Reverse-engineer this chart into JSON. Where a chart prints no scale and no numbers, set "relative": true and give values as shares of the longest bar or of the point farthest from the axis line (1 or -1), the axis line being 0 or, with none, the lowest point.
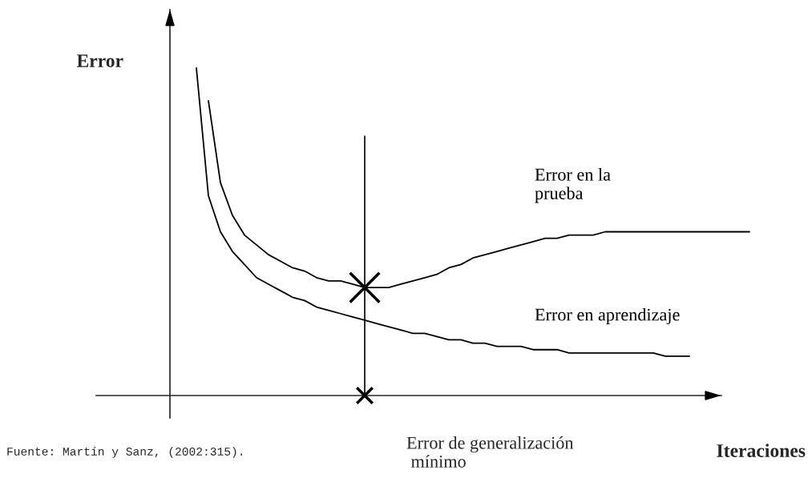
{
  "chart_data": {
    "type": "line",
    "relative": true,
    "xlabel": "Iteraciones",
    "ylabel": "Error",
    "categories": [
      null,
      null,
      null,
      null,
      null,
      null,
      null,
      null,
      null,
      null,
      null,
      null,
      null,
      null,
      null,
      null,
      null,
      null,
      null,
      null,
      null,
      null,
      null,
      null,
      null,
      null,
      null,
      null,
      null,
      null,
      null,
      null,
      null,
      null,
      null,
      null,
      null,
      null,
      null,
      null,
      null,
      null,
      null,
      null,
      null,
      null,
      null
    ],
    "series": [
      {
        "name": "Error en la\nprueba",
        "color": "#000000",
        "values": [
          null,
          0.9,
          0.65,
          0.55,
          0.49,
          0.46,
          0.43,
          0.41,
          0.39,
          0.38,
          0.36,
          0.35,
          0.35,
          0.34,
          0.33,
          0.33,
          0.33,
          0.34,
          0.35,
          0.36,
          0.37,
          0.39,
          0.4,
          0.42,
          0.43,
          0.44,
          0.45,
          0.46,
          0.47,
          0.48,
          0.48,
          0.49,
          0.49,
          0.49,
          0.5,
          0.5,
          0.5,
          0.5,
          0.5,
          0.5,
          0.5,
          0.5,
          0.5,
          0.5,
          0.5,
          0.5,
          0.5
        ]
      },
      {
        "name": "Error en aprendizaje",
        "color": "#000000",
        "values": [
          1.0,
          0.61,
          0.5,
          0.44,
          0.4,
          0.36,
          0.34,
          0.32,
          0.3,
          0.29,
          0.27,
          0.26,
          0.25,
          0.24,
          0.23,
          0.22,
          0.21,
          0.2,
          0.19,
          0.19,
          0.18,
          0.17,
          0.17,
          0.16,
          0.16,
          0.15,
          0.15,
          0.15,
          0.14,
          0.14,
          0.14,
          0.13,
          0.13,
          0.13,
          0.13,
          0.13,
          0.13,
          0.13,
          0.13,
          0.12,
          0.12,
          0.12,
          null,
          null,
          null,
          null,
          null
        ]
      }
    ],
    "annotations": [
      "Error de generalización\n mínimo",
      "Fuente: Martín y Sanz, (2002:315)."
    ],
    "legend": false,
    "marker": "none",
    "line_style": "solid"
  }
}
